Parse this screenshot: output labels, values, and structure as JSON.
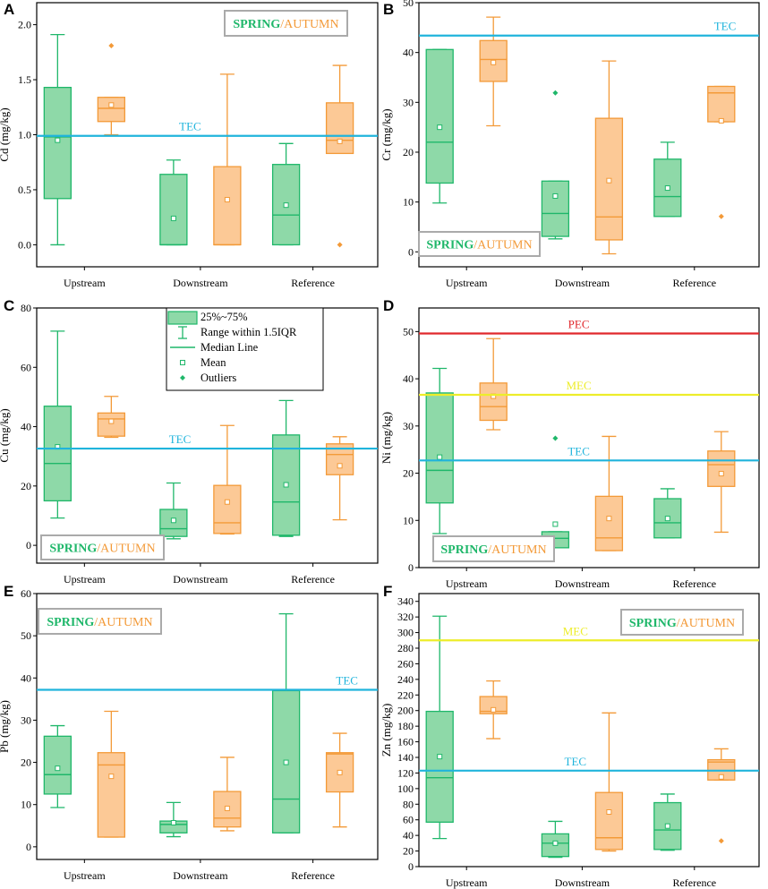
{
  "colors": {
    "spring": "#1fb76a",
    "spring_fill": "#8ed9a8",
    "autumn": "#f39a38",
    "autumn_fill": "#fcc996",
    "tec": "#20b4dc",
    "mec": "#eded2a",
    "pec": "#e0282c",
    "frame": "#000000",
    "legend_border": "#aaaaaa"
  },
  "legend_label": {
    "spring": "SPRING",
    "slash": "/",
    "autumn": "AUTUMN"
  },
  "box_legend": {
    "items": [
      {
        "kind": "box",
        "label": "25%~75%"
      },
      {
        "kind": "whisker",
        "label": "Range within 1.5IQR"
      },
      {
        "kind": "median",
        "label": "Median Line"
      },
      {
        "kind": "mean",
        "label": "Mean"
      },
      {
        "kind": "outlier",
        "label": "Outliers"
      }
    ]
  },
  "chart_data": [
    {
      "panel": "A",
      "type": "box",
      "ylabel": "Cd (mg/kg)",
      "ylim": [
        -0.2,
        2.2
      ],
      "yticks": [
        "0.0",
        "0.5",
        "1.0",
        "1.5",
        "2.0"
      ],
      "categories": [
        "Upstream",
        "Downstream",
        "Reference"
      ],
      "legend_position": "top-right",
      "reference_lines": [
        {
          "label": "TEC",
          "value": 0.99,
          "color": "tec"
        }
      ],
      "series": [
        {
          "name": "SPRING",
          "boxes": [
            {
              "whisker_low": 0.0,
              "q1": 0.42,
              "median": 0.98,
              "q3": 1.43,
              "whisker_high": 1.91,
              "mean": 0.95,
              "outliers": []
            },
            {
              "whisker_low": 0.0,
              "q1": 0.0,
              "median": 0.0,
              "q3": 0.64,
              "whisker_high": 0.77,
              "mean": 0.24,
              "outliers": []
            },
            {
              "whisker_low": 0.0,
              "q1": 0.0,
              "median": 0.27,
              "q3": 0.73,
              "whisker_high": 0.92,
              "mean": 0.36,
              "outliers": []
            }
          ]
        },
        {
          "name": "AUTUMN",
          "boxes": [
            {
              "whisker_low": 1.0,
              "q1": 1.12,
              "median": 1.24,
              "q3": 1.34,
              "whisker_high": 1.34,
              "mean": 1.27,
              "outliers": [
                1.81
              ]
            },
            {
              "whisker_low": 0.0,
              "q1": 0.0,
              "median": 0.0,
              "q3": 0.71,
              "whisker_high": 1.55,
              "mean": 0.41,
              "outliers": []
            },
            {
              "whisker_low": 0.83,
              "q1": 0.83,
              "median": 0.95,
              "q3": 1.29,
              "whisker_high": 1.63,
              "mean": 0.94,
              "outliers": [
                0.0
              ]
            }
          ]
        }
      ]
    },
    {
      "panel": "B",
      "type": "box",
      "ylabel": "Cr (mg/kg)",
      "ylim": [
        -3,
        50
      ],
      "yticks": [
        "0",
        "10",
        "20",
        "30",
        "40",
        "50"
      ],
      "categories": [
        "Upstream",
        "Downstream",
        "Reference"
      ],
      "legend_position": "bottom-left",
      "reference_lines": [
        {
          "label": "TEC",
          "value": 43.4,
          "color": "tec"
        }
      ],
      "series": [
        {
          "name": "SPRING",
          "boxes": [
            {
              "whisker_low": 9.8,
              "q1": 13.8,
              "median": 22.0,
              "q3": 40.6,
              "whisker_high": 40.6,
              "mean": 25.0,
              "outliers": []
            },
            {
              "whisker_low": 2.6,
              "q1": 3.1,
              "median": 7.7,
              "q3": 14.2,
              "whisker_high": 14.2,
              "mean": 11.2,
              "outliers": [
                31.9
              ]
            },
            {
              "whisker_low": 7.1,
              "q1": 7.1,
              "median": 11.1,
              "q3": 18.6,
              "whisker_high": 22.0,
              "mean": 12.8,
              "outliers": []
            }
          ]
        },
        {
          "name": "AUTUMN",
          "boxes": [
            {
              "whisker_low": 25.3,
              "q1": 34.2,
              "median": 38.6,
              "q3": 42.4,
              "whisker_high": 47.1,
              "mean": 38.0,
              "outliers": []
            },
            {
              "whisker_low": -0.4,
              "q1": 2.4,
              "median": 7.0,
              "q3": 26.8,
              "whisker_high": 38.3,
              "mean": 14.3,
              "outliers": []
            },
            {
              "whisker_low": 26.1,
              "q1": 26.1,
              "median": 31.9,
              "q3": 33.2,
              "whisker_high": 33.2,
              "mean": 26.3,
              "outliers": [
                7.1
              ]
            }
          ]
        }
      ]
    },
    {
      "panel": "C",
      "type": "box",
      "ylabel": "Cu (mg/kg)",
      "ylim": [
        -6,
        80
      ],
      "yticks": [
        "0",
        "20",
        "40",
        "60",
        "80"
      ],
      "categories": [
        "Upstream",
        "Downstream",
        "Reference"
      ],
      "legend_position": "bottom-left",
      "reference_lines": [
        {
          "label": "TEC",
          "value": 32.6,
          "color": "tec"
        }
      ],
      "series": [
        {
          "name": "SPRING",
          "boxes": [
            {
              "whisker_low": 9.2,
              "q1": 15.0,
              "median": 27.6,
              "q3": 46.9,
              "whisker_high": 72.2,
              "mean": 33.2,
              "outliers": []
            },
            {
              "whisker_low": 2.2,
              "q1": 3.0,
              "median": 5.6,
              "q3": 12.1,
              "whisker_high": 21.0,
              "mean": 8.4,
              "outliers": []
            },
            {
              "whisker_low": 3.0,
              "q1": 3.4,
              "median": 14.6,
              "q3": 37.2,
              "whisker_high": 48.8,
              "mean": 20.4,
              "outliers": []
            }
          ]
        },
        {
          "name": "AUTUMN",
          "boxes": [
            {
              "whisker_low": 36.4,
              "q1": 36.8,
              "median": 42.6,
              "q3": 44.6,
              "whisker_high": 50.2,
              "mean": 41.8,
              "outliers": []
            },
            {
              "whisker_low": 3.8,
              "q1": 4.0,
              "median": 7.6,
              "q3": 20.2,
              "whisker_high": 40.4,
              "mean": 14.6,
              "outliers": []
            },
            {
              "whisker_low": 8.6,
              "q1": 23.8,
              "median": 30.6,
              "q3": 34.2,
              "whisker_high": 36.6,
              "mean": 26.8,
              "outliers": []
            }
          ]
        }
      ]
    },
    {
      "panel": "D",
      "type": "box",
      "ylabel": "Ni (mg/kg)",
      "ylim": [
        0,
        55
      ],
      "yticks": [
        "0",
        "10",
        "20",
        "30",
        "40",
        "50"
      ],
      "categories": [
        "Upstream",
        "Downstream",
        "Reference"
      ],
      "legend_position": "bottom-left",
      "reference_lines": [
        {
          "label": "PEC",
          "value": 49.6,
          "color": "pec"
        },
        {
          "label": "MEC",
          "value": 36.6,
          "color": "mec"
        },
        {
          "label": "TEC",
          "value": 22.7,
          "color": "tec"
        }
      ],
      "series": [
        {
          "name": "SPRING",
          "boxes": [
            {
              "whisker_low": 7.2,
              "q1": 13.7,
              "median": 20.6,
              "q3": 37.0,
              "whisker_high": 42.2,
              "mean": 23.4,
              "outliers": []
            },
            {
              "whisker_low": 4.2,
              "q1": 4.2,
              "median": 6.2,
              "q3": 7.6,
              "whisker_high": 7.6,
              "mean": 9.2,
              "outliers": [
                27.4
              ]
            },
            {
              "whisker_low": 6.3,
              "q1": 6.3,
              "median": 9.5,
              "q3": 14.6,
              "whisker_high": 16.7,
              "mean": 10.4,
              "outliers": []
            }
          ]
        },
        {
          "name": "AUTUMN",
          "boxes": [
            {
              "whisker_low": 29.2,
              "q1": 31.2,
              "median": 34.1,
              "q3": 39.1,
              "whisker_high": 48.5,
              "mean": 36.3,
              "outliers": []
            },
            {
              "whisker_low": 3.6,
              "q1": 3.6,
              "median": 6.3,
              "q3": 15.1,
              "whisker_high": 27.8,
              "mean": 10.4,
              "outliers": []
            },
            {
              "whisker_low": 7.5,
              "q1": 17.2,
              "median": 21.8,
              "q3": 24.7,
              "whisker_high": 28.8,
              "mean": 19.9,
              "outliers": []
            }
          ]
        }
      ]
    },
    {
      "panel": "E",
      "type": "box",
      "ylabel": "Pb (mg/kg)",
      "ylim": [
        -3,
        60
      ],
      "yticks": [
        "0",
        "10",
        "20",
        "30",
        "40",
        "50",
        "60"
      ],
      "categories": [
        "Upstream",
        "Downstream",
        "Reference"
      ],
      "legend_position": "top-left",
      "reference_lines": [
        {
          "label": "TEC",
          "value": 37.2,
          "color": "tec"
        }
      ],
      "series": [
        {
          "name": "SPRING",
          "boxes": [
            {
              "whisker_low": 9.3,
              "q1": 12.5,
              "median": 17.1,
              "q3": 26.2,
              "whisker_high": 28.7,
              "mean": 18.6,
              "outliers": []
            },
            {
              "whisker_low": 2.4,
              "q1": 3.3,
              "median": 5.3,
              "q3": 6.1,
              "whisker_high": 10.5,
              "mean": 5.7,
              "outliers": []
            },
            {
              "whisker_low": 3.3,
              "q1": 3.3,
              "median": 11.3,
              "q3": 37.0,
              "whisker_high": 55.2,
              "mean": 20.0,
              "outliers": []
            }
          ]
        },
        {
          "name": "AUTUMN",
          "boxes": [
            {
              "whisker_low": 2.3,
              "q1": 2.3,
              "median": 19.4,
              "q3": 22.3,
              "whisker_high": 32.1,
              "mean": 16.7,
              "outliers": []
            },
            {
              "whisker_low": 3.8,
              "q1": 4.7,
              "median": 6.8,
              "q3": 13.1,
              "whisker_high": 21.2,
              "mean": 9.1,
              "outliers": []
            },
            {
              "whisker_low": 4.7,
              "q1": 13.0,
              "median": 22.0,
              "q3": 22.3,
              "whisker_high": 26.9,
              "mean": 17.6,
              "outliers": []
            }
          ]
        }
      ]
    },
    {
      "panel": "F",
      "type": "box",
      "ylabel": "Zn (mg/kg)",
      "ylim": [
        0,
        350
      ],
      "yticks": [
        "0",
        "20",
        "40",
        "60",
        "80",
        "100",
        "120",
        "140",
        "160",
        "180",
        "200",
        "220",
        "240",
        "260",
        "280",
        "300",
        "320",
        "340"
      ],
      "categories": [
        "Upstream",
        "Downstream",
        "Reference"
      ],
      "legend_position": "top-right",
      "reference_lines": [
        {
          "label": "MEC",
          "value": 290,
          "color": "mec"
        },
        {
          "label": "TEC",
          "value": 123,
          "color": "tec"
        }
      ],
      "series": [
        {
          "name": "SPRING",
          "boxes": [
            {
              "whisker_low": 36,
              "q1": 57,
              "median": 114,
              "q3": 199,
              "whisker_high": 321,
              "mean": 141,
              "outliers": []
            },
            {
              "whisker_low": 12,
              "q1": 13,
              "median": 30,
              "q3": 42,
              "whisker_high": 58,
              "mean": 30,
              "outliers": []
            },
            {
              "whisker_low": 21,
              "q1": 22,
              "median": 47,
              "q3": 82,
              "whisker_high": 93,
              "mean": 52,
              "outliers": []
            }
          ]
        },
        {
          "name": "AUTUMN",
          "boxes": [
            {
              "whisker_low": 164,
              "q1": 196,
              "median": 199,
              "q3": 218,
              "whisker_high": 238,
              "mean": 201,
              "outliers": []
            },
            {
              "whisker_low": 20,
              "q1": 22,
              "median": 37,
              "q3": 95,
              "whisker_high": 197,
              "mean": 70,
              "outliers": []
            },
            {
              "whisker_low": 111,
              "q1": 111,
              "median": 134,
              "q3": 137,
              "whisker_high": 151,
              "mean": 115,
              "outliers": [
                33
              ]
            }
          ]
        }
      ]
    }
  ]
}
